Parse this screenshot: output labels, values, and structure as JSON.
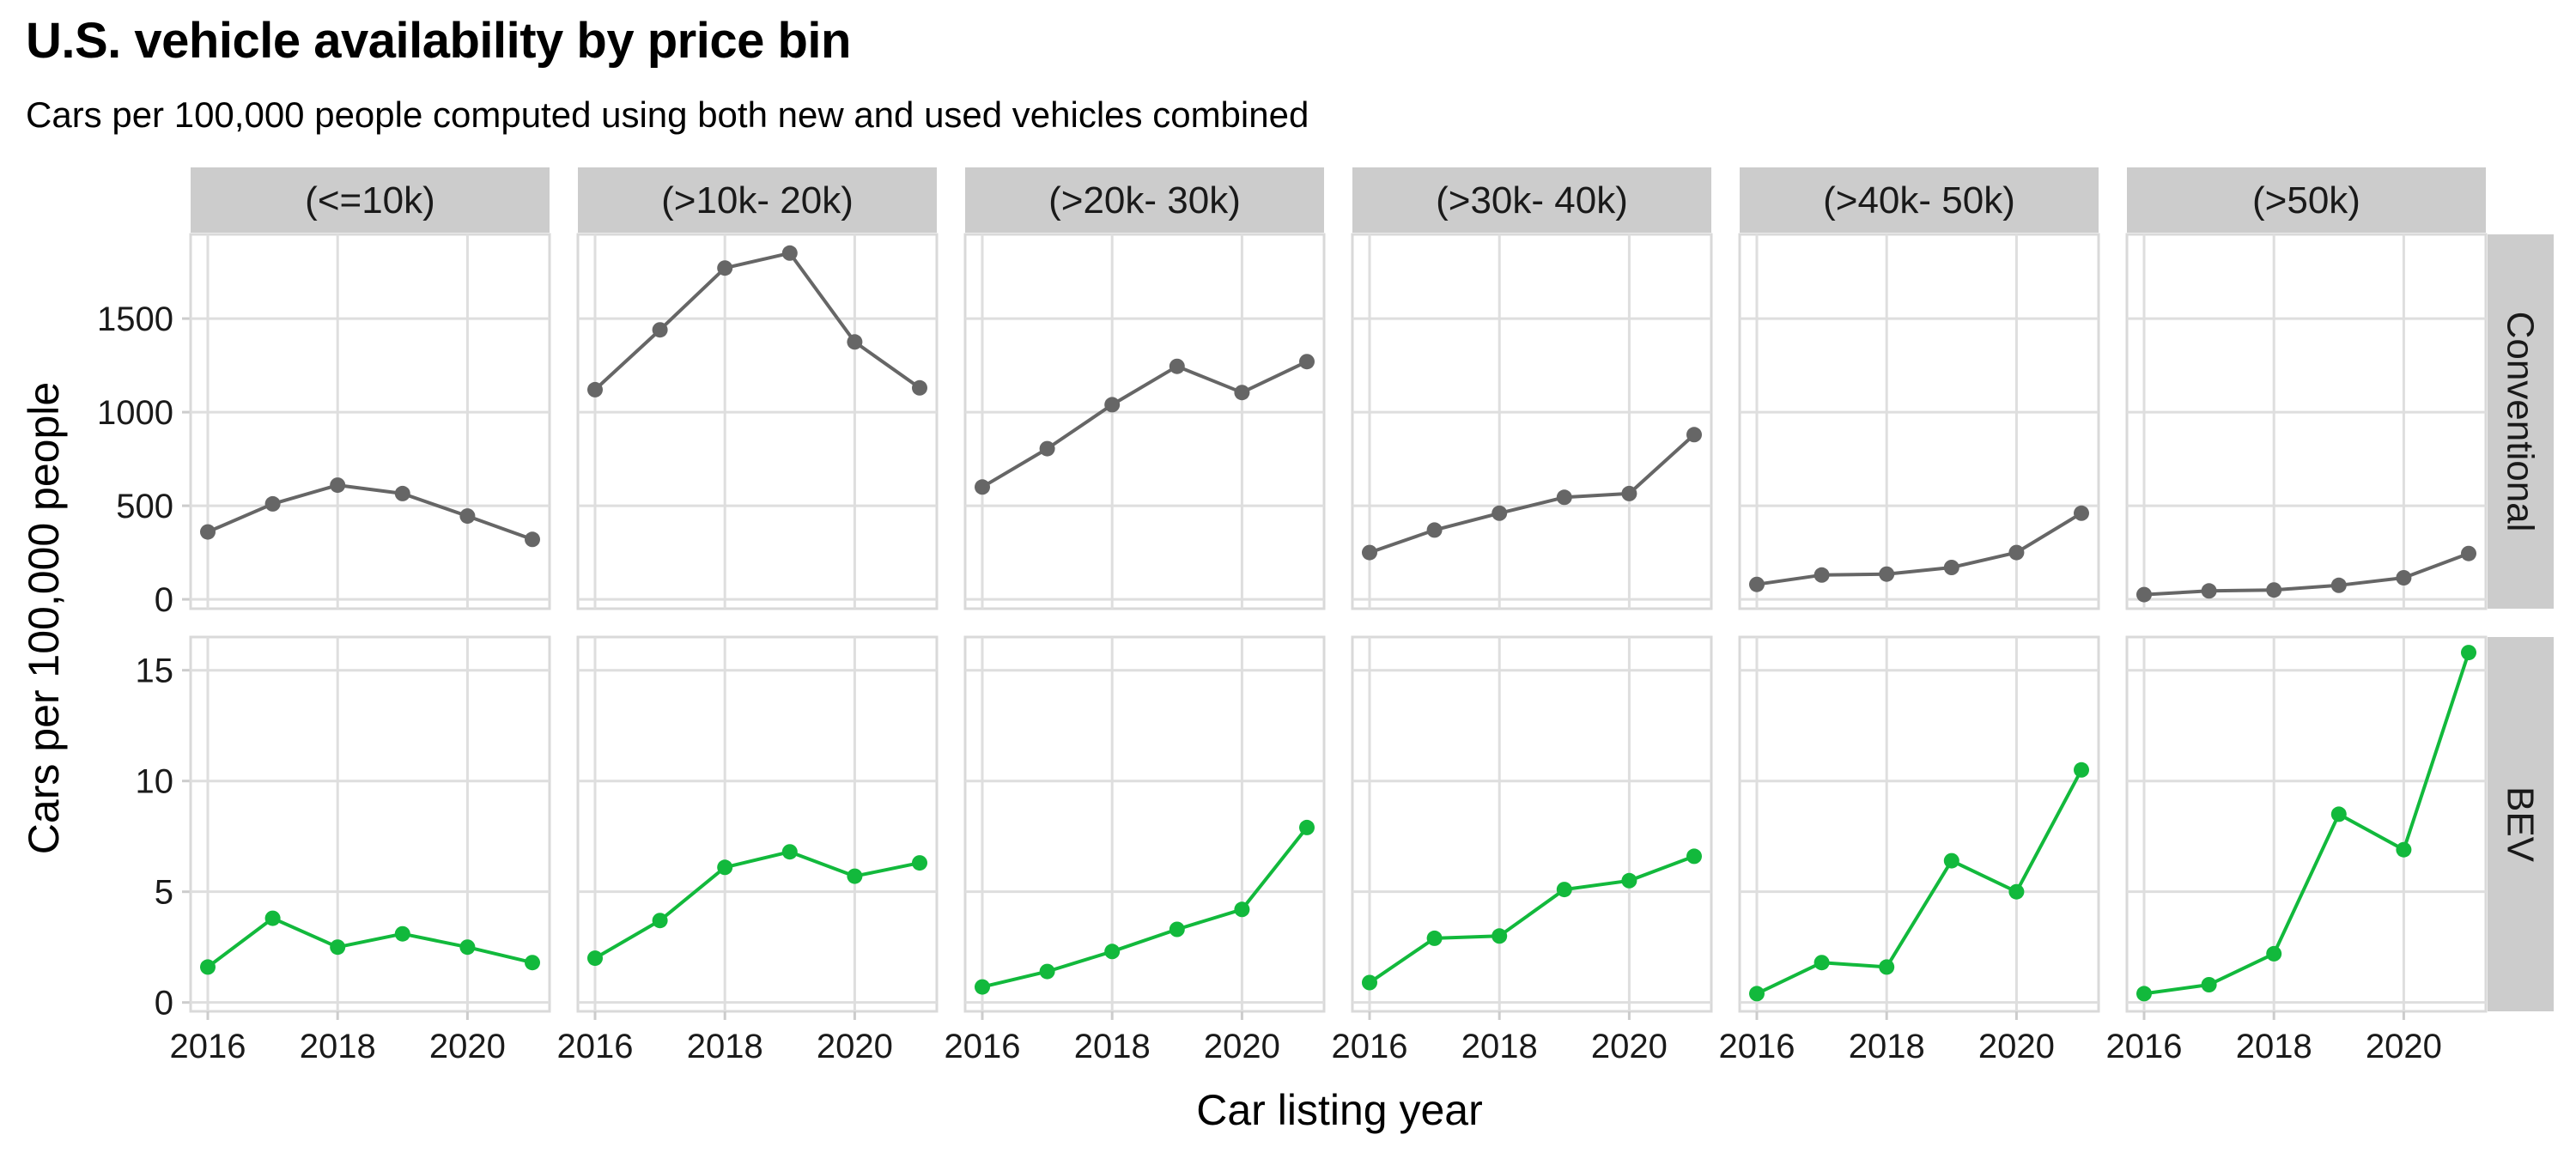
{
  "chart_data": {
    "type": "line",
    "title": "U.S. vehicle availability by price bin",
    "subtitle": "Cars per 100,000 people computed using both new and used vehicles combined",
    "xlabel": "Car listing year",
    "ylabel": "Cars per 100,000 people",
    "x": [
      2016,
      2017,
      2018,
      2019,
      2020,
      2021
    ],
    "x_ticks": [
      2016,
      2018,
      2020
    ],
    "columns": [
      "(<=10k)",
      "(>10k- 20k)",
      "(>20k- 30k)",
      "(>30k- 40k)",
      "(>40k- 50k)",
      "(>50k)"
    ],
    "rows": [
      {
        "name": "Conventional",
        "color": "#666666",
        "ylim": [
          -50,
          1950
        ],
        "y_ticks": [
          0,
          500,
          1000,
          1500
        ],
        "series": [
          {
            "name": "(<=10k)",
            "values": [
              360,
              510,
              610,
              565,
              445,
              320
            ]
          },
          {
            "name": "(>10k- 20k)",
            "values": [
              1120,
              1440,
              1770,
              1850,
              1375,
              1130
            ]
          },
          {
            "name": "(>20k- 30k)",
            "values": [
              600,
              805,
              1040,
              1245,
              1105,
              1270
            ]
          },
          {
            "name": "(>30k- 40k)",
            "values": [
              250,
              370,
              460,
              545,
              565,
              880
            ]
          },
          {
            "name": "(>40k- 50k)",
            "values": [
              80,
              130,
              135,
              170,
              250,
              460
            ]
          },
          {
            "name": "(>50k)",
            "values": [
              25,
              45,
              50,
              75,
              115,
              245
            ]
          }
        ]
      },
      {
        "name": "BEV",
        "color": "#12B93C",
        "ylim": [
          -0.4,
          16.5
        ],
        "y_ticks": [
          0,
          5,
          10,
          15
        ],
        "series": [
          {
            "name": "(<=10k)",
            "values": [
              1.6,
              3.8,
              2.5,
              3.1,
              2.5,
              1.8
            ]
          },
          {
            "name": "(>10k- 20k)",
            "values": [
              2.0,
              3.7,
              6.1,
              6.8,
              5.7,
              6.3
            ]
          },
          {
            "name": "(>20k- 30k)",
            "values": [
              0.7,
              1.4,
              2.3,
              3.3,
              4.2,
              7.9
            ]
          },
          {
            "name": "(>30k- 40k)",
            "values": [
              0.9,
              2.9,
              3.0,
              5.1,
              5.5,
              6.6
            ]
          },
          {
            "name": "(>40k- 50k)",
            "values": [
              0.4,
              1.8,
              1.6,
              6.4,
              5.0,
              10.5
            ]
          },
          {
            "name": "(>50k)",
            "values": [
              0.4,
              0.8,
              2.2,
              8.5,
              6.9,
              15.8
            ]
          }
        ]
      }
    ],
    "grid": true,
    "legend": "none"
  }
}
